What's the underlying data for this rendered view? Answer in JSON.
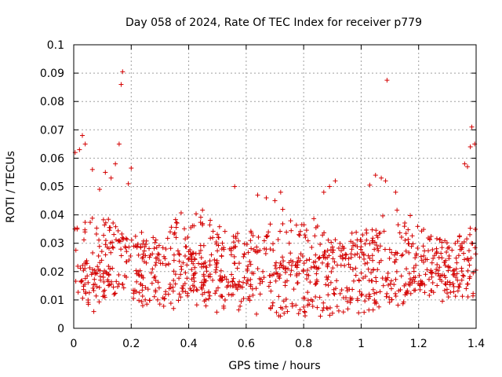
{
  "chart_data": {
    "type": "scatter",
    "title": "Day 058 of 2024, Rate Of TEC Index for receiver p779",
    "xlabel": "GPS time / hours",
    "ylabel": "ROTI / TECUs",
    "xlim": [
      0,
      1.4
    ],
    "ylim": [
      0,
      0.1
    ],
    "xticks": [
      0,
      0.2,
      0.4,
      0.6,
      0.8,
      1,
      1.2,
      1.4
    ],
    "xtick_labels": [
      "0",
      "0.2",
      "0.4",
      "0.6",
      "0.8",
      "1",
      "1.2",
      "1.4"
    ],
    "yticks": [
      0,
      0.01,
      0.02,
      0.03,
      0.04,
      0.05,
      0.06,
      0.07,
      0.08,
      0.09,
      0.1
    ],
    "ytick_labels": [
      "0",
      "0.01",
      "0.02",
      "0.03",
      "0.04",
      "0.05",
      "0.06",
      "0.07",
      "0.08",
      "0.09",
      "0.1"
    ],
    "grid": true,
    "marker": "+",
    "series_color": "#d40000",
    "outliers": [
      {
        "x": 0.005,
        "y": 0.062
      },
      {
        "x": 0.02,
        "y": 0.063
      },
      {
        "x": 0.03,
        "y": 0.068
      },
      {
        "x": 0.04,
        "y": 0.065
      },
      {
        "x": 0.065,
        "y": 0.056
      },
      {
        "x": 0.09,
        "y": 0.049
      },
      {
        "x": 0.11,
        "y": 0.055
      },
      {
        "x": 0.13,
        "y": 0.053
      },
      {
        "x": 0.145,
        "y": 0.058
      },
      {
        "x": 0.158,
        "y": 0.065
      },
      {
        "x": 0.165,
        "y": 0.086
      },
      {
        "x": 0.17,
        "y": 0.0905
      },
      {
        "x": 0.2,
        "y": 0.0565
      },
      {
        "x": 0.19,
        "y": 0.051
      },
      {
        "x": 0.56,
        "y": 0.05
      },
      {
        "x": 0.64,
        "y": 0.047
      },
      {
        "x": 0.67,
        "y": 0.046
      },
      {
        "x": 0.7,
        "y": 0.045
      },
      {
        "x": 0.72,
        "y": 0.048
      },
      {
        "x": 0.87,
        "y": 0.048
      },
      {
        "x": 0.89,
        "y": 0.05
      },
      {
        "x": 0.91,
        "y": 0.052
      },
      {
        "x": 1.03,
        "y": 0.0505
      },
      {
        "x": 1.05,
        "y": 0.054
      },
      {
        "x": 1.07,
        "y": 0.053
      },
      {
        "x": 1.09,
        "y": 0.0875
      },
      {
        "x": 1.085,
        "y": 0.052
      },
      {
        "x": 1.12,
        "y": 0.048
      },
      {
        "x": 1.36,
        "y": 0.058
      },
      {
        "x": 1.37,
        "y": 0.057
      },
      {
        "x": 1.385,
        "y": 0.071
      },
      {
        "x": 1.395,
        "y": 0.065
      },
      {
        "x": 1.38,
        "y": 0.064
      }
    ],
    "band_description": "Dense scatter of ROTI samples, mostly between 0.005 and 0.04 TECU/min across 0 to 1.4 hours",
    "band": {
      "count": 1100,
      "x_range": [
        0,
        1.4
      ],
      "y_min": 0.004,
      "y_max": 0.042,
      "y_center": 0.019
    }
  }
}
